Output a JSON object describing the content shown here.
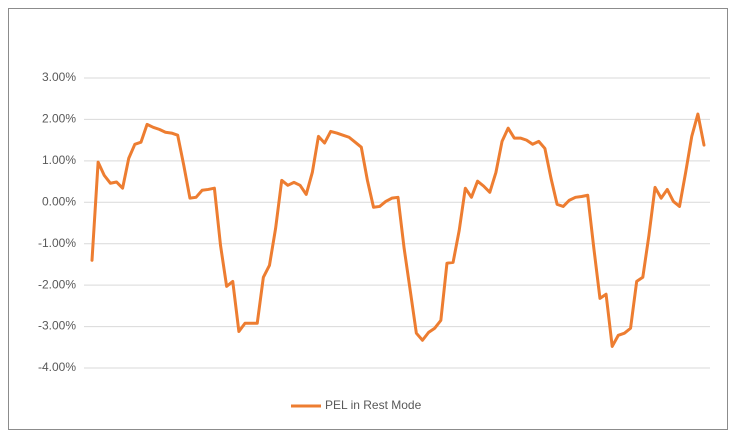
{
  "chart_data": {
    "type": "line",
    "series": [
      {
        "name": "PEL in Rest Mode",
        "color": "#ed7d31",
        "values": [
          -1.4,
          0.97,
          0.65,
          0.46,
          0.49,
          0.34,
          1.06,
          1.4,
          1.45,
          1.88,
          1.81,
          1.76,
          1.69,
          1.67,
          1.62,
          0.89,
          0.1,
          0.12,
          0.29,
          0.31,
          0.34,
          -1.04,
          -2.03,
          -1.91,
          -3.12,
          -2.92,
          -2.92,
          -2.92,
          -1.81,
          -1.52,
          -0.63,
          0.53,
          0.41,
          0.48,
          0.41,
          0.19,
          0.72,
          1.59,
          1.43,
          1.71,
          1.67,
          1.62,
          1.57,
          1.45,
          1.33,
          0.53,
          -0.12,
          -0.1,
          0.02,
          0.1,
          0.12,
          -1.11,
          -2.13,
          -3.16,
          -3.33,
          -3.14,
          -3.04,
          -2.85,
          -1.47,
          -1.45,
          -0.68,
          0.34,
          0.12,
          0.51,
          0.39,
          0.24,
          0.72,
          1.47,
          1.79,
          1.55,
          1.55,
          1.5,
          1.4,
          1.47,
          1.3,
          0.58,
          -0.05,
          -0.1,
          0.05,
          0.12,
          0.14,
          0.17,
          -1.11,
          -2.32,
          -2.22,
          -3.48,
          -3.21,
          -3.16,
          -3.04,
          -1.91,
          -1.81,
          -0.8,
          0.36,
          0.1,
          0.31,
          0.02,
          -0.1,
          0.72,
          1.59,
          2.13,
          1.38
        ]
      }
    ],
    "ylim": [
      -4,
      3
    ],
    "yticks": [
      {
        "value": -4,
        "label": "-4.00%"
      },
      {
        "value": -3,
        "label": "-3.00%"
      },
      {
        "value": -2,
        "label": "-2.00%"
      },
      {
        "value": -1,
        "label": "-1.00%"
      },
      {
        "value": 0,
        "label": "0.00%"
      },
      {
        "value": 1,
        "label": "1.00%"
      },
      {
        "value": 2,
        "label": "2.00%"
      },
      {
        "value": 3,
        "label": "3.00%"
      }
    ],
    "grid": true,
    "legend": "bottom"
  }
}
